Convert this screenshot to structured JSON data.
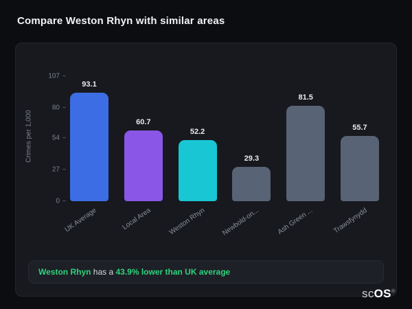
{
  "page_title": "Compare Weston Rhyn with similar areas",
  "chart_data": {
    "type": "bar",
    "title": "Compare Weston Rhyn with similar areas",
    "categories": [
      "UK Average",
      "Local Area",
      "Weston Rhyn",
      "Newbold-on...",
      "Ash Green ...",
      "Trawsfynydd"
    ],
    "values": [
      93.1,
      60.7,
      52.2,
      29.3,
      81.5,
      55.7
    ],
    "bar_colors": [
      "#3d6de4",
      "#8a56e8",
      "#19c6d3",
      "#586375",
      "#586375",
      "#586375"
    ],
    "ylabel": "Crimes per 1,000",
    "xlabel": "",
    "yticks": [
      0,
      27,
      54,
      80,
      107
    ],
    "ylim": [
      0,
      107
    ],
    "grid": false,
    "legend": "none",
    "value_labels": true
  },
  "note": {
    "highlight": "Weston Rhyn",
    "middle": " has a ",
    "stat": "43.9% lower than UK average"
  },
  "brand": {
    "prefix": "sc",
    "suffix": "OS",
    "registered": "®"
  },
  "colors": {
    "accent_green": "#2fd27d",
    "bar_blue": "#3d6de4",
    "bar_purple": "#8a56e8",
    "bar_cyan": "#19c6d3",
    "bar_slate": "#586375",
    "card_bg": "#17191e",
    "page_bg": "#0c0d10"
  }
}
